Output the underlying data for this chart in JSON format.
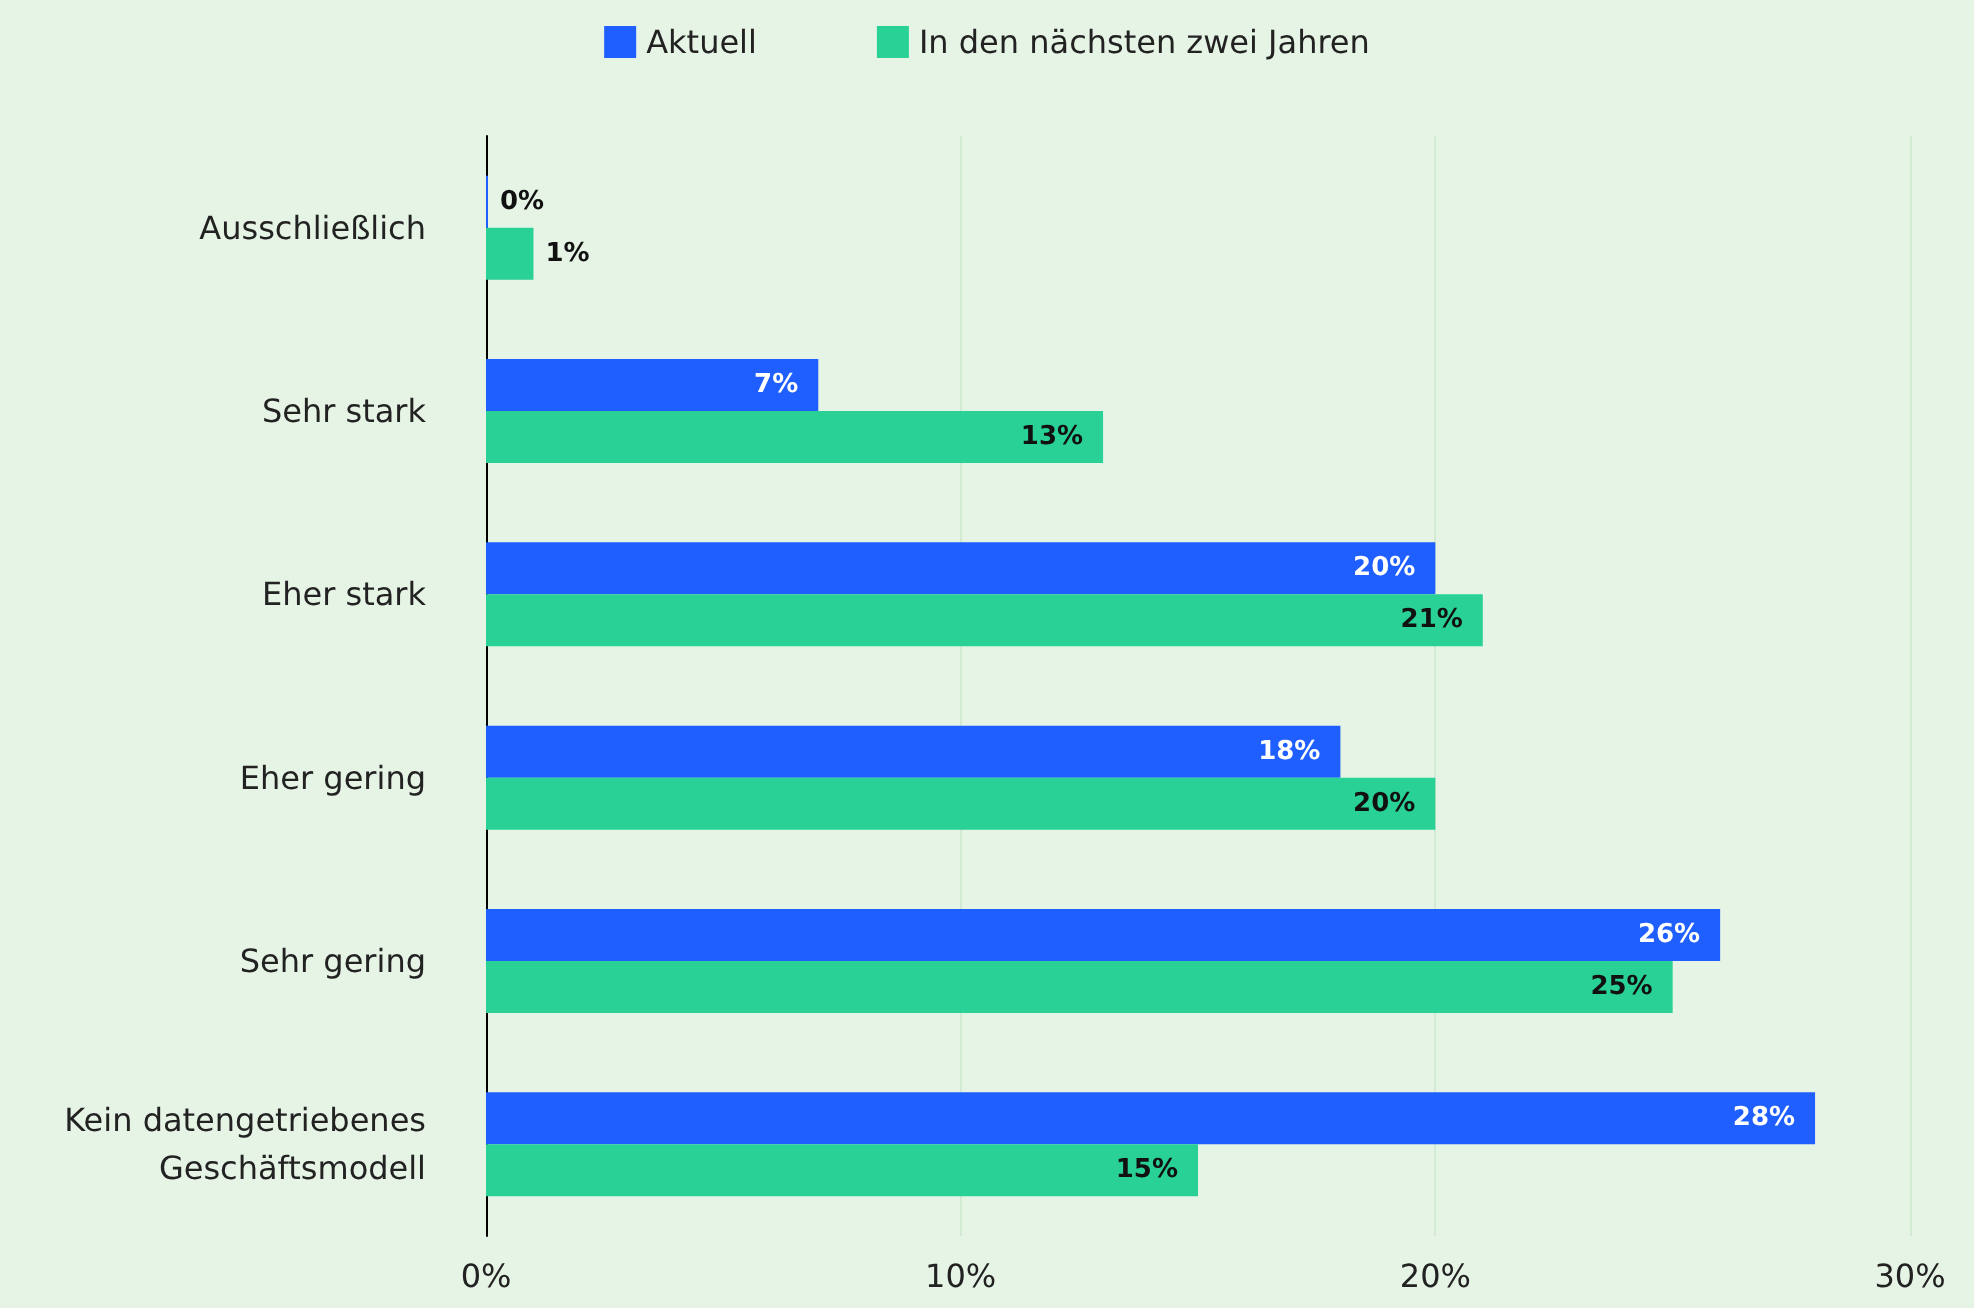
{
  "chart_data": {
    "type": "bar",
    "orientation": "horizontal",
    "categories": [
      "Ausschließlich",
      "Sehr stark",
      "Eher stark",
      "Eher gering",
      "Sehr gering",
      "Kein datengetriebenes\nGeschäftsmodell"
    ],
    "series": [
      {
        "name": "Aktuell",
        "color": "#1f5fff",
        "values": [
          0,
          7,
          20,
          18,
          26,
          28
        ],
        "value_labels": [
          "0%",
          "7%",
          "20%",
          "18%",
          "26%",
          "28%"
        ]
      },
      {
        "name": "In den nächsten zwei Jahren",
        "color": "#2ad196",
        "values": [
          1,
          13,
          21,
          20,
          25,
          15
        ],
        "value_labels": [
          "1%",
          "13%",
          "21%",
          "20%",
          "25%",
          "15%"
        ]
      }
    ],
    "xlim": [
      0,
      30
    ],
    "xticks": [
      {
        "value": 0,
        "label": "0%"
      },
      {
        "value": 10,
        "label": "10%"
      },
      {
        "value": 20,
        "label": "20%"
      },
      {
        "value": 30,
        "label": "30%"
      }
    ],
    "grid": "x",
    "legend": "top"
  }
}
